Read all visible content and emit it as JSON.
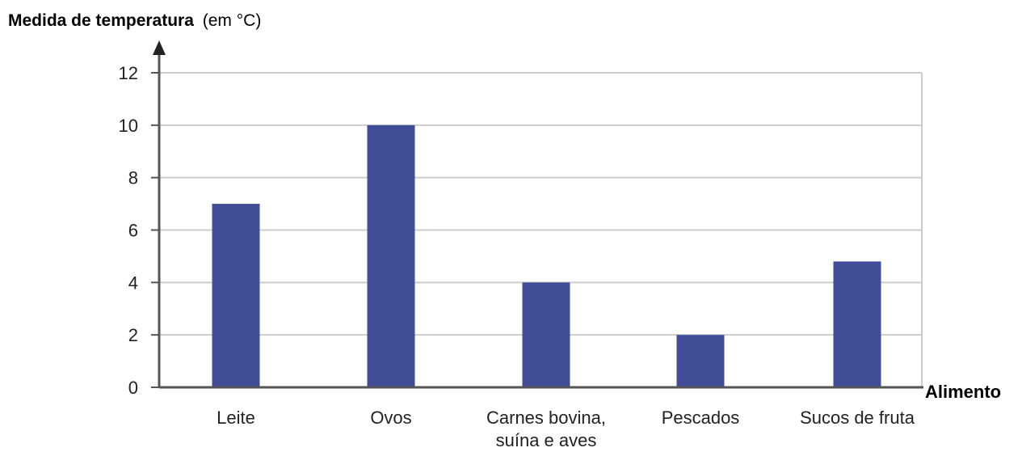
{
  "chart_data": {
    "type": "bar",
    "title": "",
    "ylabel_main": "Medida de temperatura",
    "ylabel_unit": "(em °C)",
    "xlabel": "Alimento",
    "categories": [
      [
        "Leite"
      ],
      [
        "Ovos"
      ],
      [
        "Carnes bovina,",
        "suína e aves"
      ],
      [
        "Pescados"
      ],
      [
        "Sucos de fruta"
      ]
    ],
    "values": [
      7,
      10,
      4,
      2,
      4.8
    ],
    "ylim": [
      0,
      12
    ],
    "yticks": [
      0,
      2,
      4,
      6,
      8,
      10,
      12
    ],
    "grid": true,
    "colors": {
      "bar": "#414d97",
      "axis": "#555555",
      "grid": "#cccccc",
      "text": "#222222",
      "label": "#111111"
    }
  }
}
